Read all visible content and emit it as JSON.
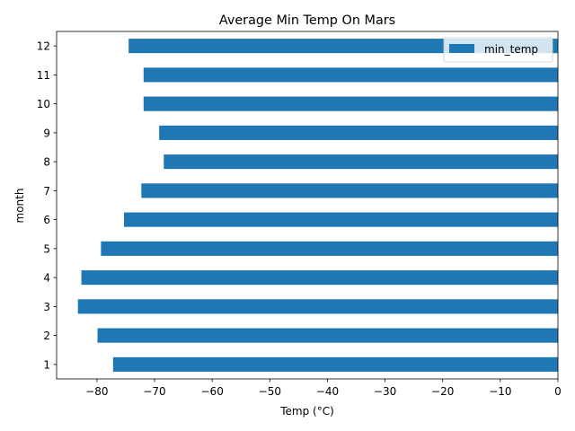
{
  "chart_data": {
    "type": "bar",
    "orientation": "horizontal",
    "title": "Average Min Temp On Mars",
    "xlabel": "Temp (°C)",
    "ylabel": "month",
    "categories": [
      "1",
      "2",
      "3",
      "4",
      "5",
      "6",
      "7",
      "8",
      "9",
      "10",
      "11",
      "12"
    ],
    "series": [
      {
        "name": "min_temp",
        "color": "#1f77b4",
        "values": [
          -77.2,
          -79.9,
          -83.3,
          -82.7,
          -79.3,
          -75.3,
          -72.3,
          -68.4,
          -69.2,
          -71.9,
          -71.9,
          -74.5
        ]
      }
    ],
    "xlim": [
      -87,
      0
    ],
    "xticks": [
      -80,
      -70,
      -60,
      -50,
      -40,
      -30,
      -20,
      -10,
      0
    ],
    "xtick_labels": [
      "−80",
      "−70",
      "−60",
      "−50",
      "−40",
      "−30",
      "−20",
      "−10",
      "0"
    ],
    "grid": false,
    "legend_position": "top-right"
  }
}
